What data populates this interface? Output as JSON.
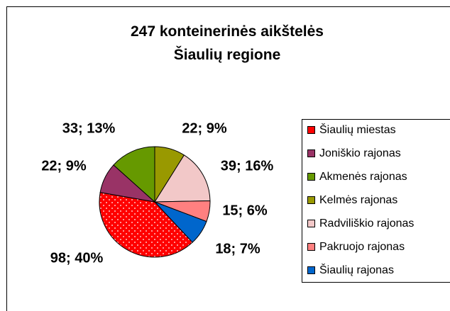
{
  "chart_data": {
    "type": "pie",
    "title": "247 konteinerinės aikštelės Šiaulių regione",
    "categories": [
      "Šiaulių miestas",
      "Joniškio rajonas",
      "Akmenės rajonas",
      "Kelmės rajonas",
      "Radviliškio rajonas",
      "Pakruojo rajonas",
      "Šiaulių rajonas"
    ],
    "values": [
      98,
      22,
      33,
      22,
      39,
      15,
      18
    ],
    "value_labels": [
      "98; 40%",
      "22; 9%",
      "33; 13%",
      "22; 9%",
      "39; 16%",
      "15; 6%",
      "18; 7%"
    ],
    "colors": [
      "#ff0000",
      "#993366",
      "#669900",
      "#999900",
      "#f2c8c8",
      "#ff8080",
      "#0066cc"
    ],
    "legend": "right"
  }
}
